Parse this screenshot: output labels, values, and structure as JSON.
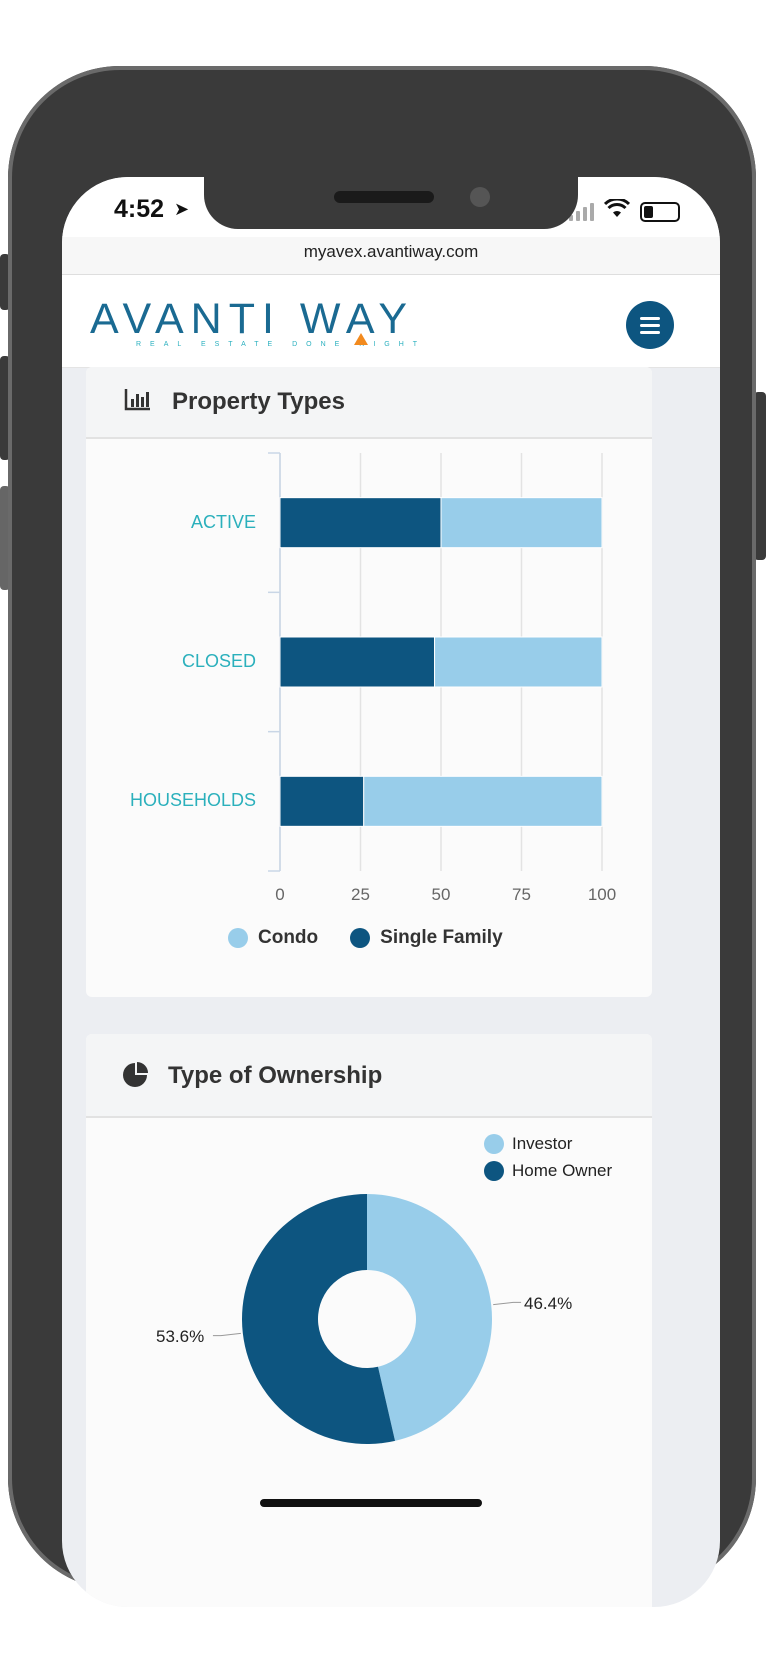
{
  "status_bar": {
    "time": "4:52"
  },
  "browser": {
    "url": "myavex.avantiway.com"
  },
  "header": {
    "logo_text": "AVANTI WAY",
    "logo_tagline": "REAL ESTATE DONE RIGHT"
  },
  "property_types": {
    "title": "Property Types",
    "chart_data": {
      "type": "bar",
      "orientation": "horizontal",
      "stacked": true,
      "categories": [
        "ACTIVE",
        "CLOSED",
        "HOUSEHOLDS"
      ],
      "series": [
        {
          "name": "Single Family",
          "values": [
            50,
            48,
            26
          ],
          "color": "#0d5580"
        },
        {
          "name": "Condo",
          "values": [
            50,
            52,
            74
          ],
          "color": "#98cdea"
        }
      ],
      "xticks": [
        "0",
        "25",
        "50",
        "75",
        "100"
      ],
      "xlim": [
        0,
        100
      ],
      "grid": true,
      "legend": "bottom",
      "legend_items": [
        {
          "name": "Condo",
          "color": "#98cdea"
        },
        {
          "name": "Single Family",
          "color": "#0d5580"
        }
      ]
    }
  },
  "ownership": {
    "title": "Type of Ownership",
    "chart_data": {
      "type": "pie",
      "donut": true,
      "slices": [
        {
          "name": "Investor",
          "value": 46.4,
          "label": "46.4%",
          "color": "#98cdea"
        },
        {
          "name": "Home Owner",
          "value": 53.6,
          "label": "53.6%",
          "color": "#0d5580"
        }
      ],
      "legend": "top-right"
    }
  }
}
